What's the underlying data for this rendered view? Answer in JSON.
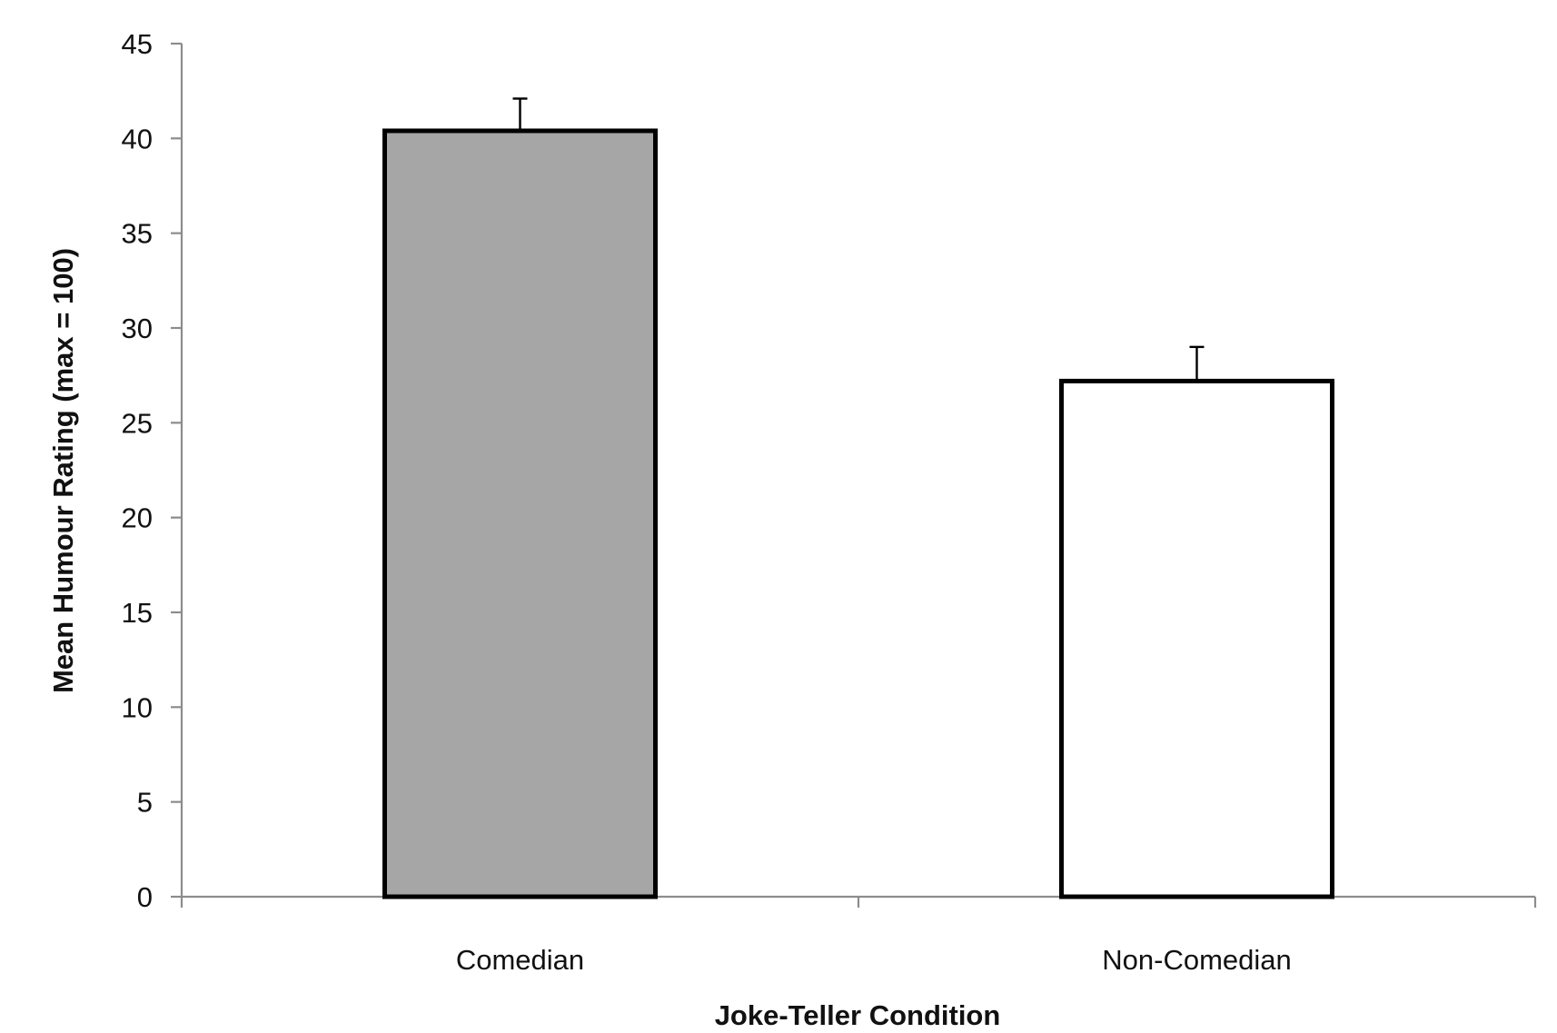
{
  "chart_data": {
    "type": "bar",
    "title": "",
    "xlabel": "Joke-Teller Condition",
    "ylabel": "Mean Humour Rating (max = 100)",
    "categories": [
      "Comedian",
      "Non-Comedian"
    ],
    "values": [
      40.4,
      27.2
    ],
    "error_bars": [
      1.7,
      1.8
    ],
    "bar_colors": [
      "#a6a6a6",
      "#ffffff"
    ],
    "bar_edge_color": "#000000",
    "ylim": [
      0,
      45
    ],
    "yticks": [
      0,
      5,
      10,
      15,
      20,
      25,
      30,
      35,
      40,
      45
    ],
    "grid": false,
    "legend": "none"
  }
}
